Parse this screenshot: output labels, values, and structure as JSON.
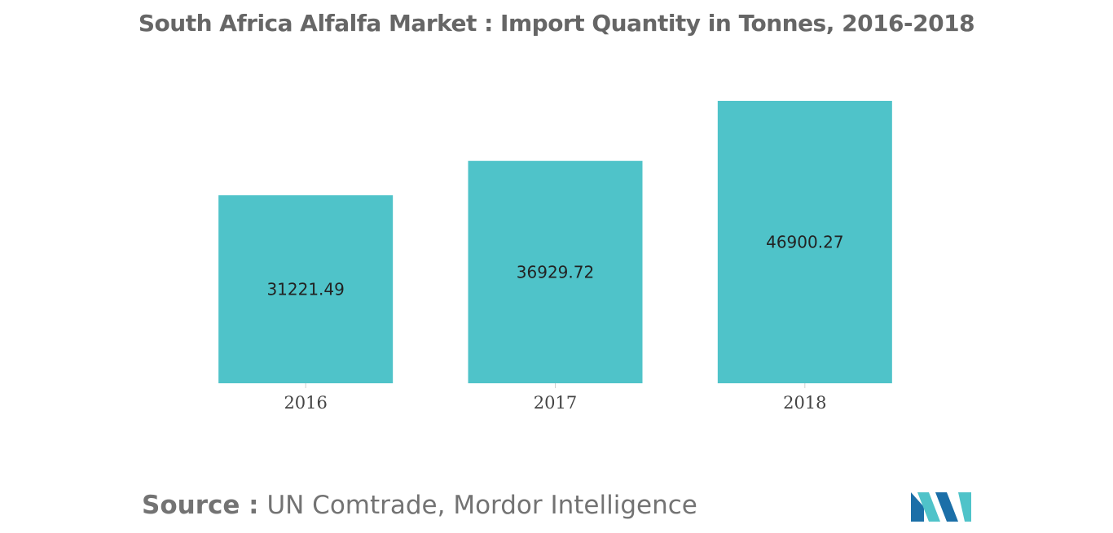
{
  "chart_data": {
    "type": "bar",
    "title": "South Africa Alfalfa Market : Import Quantity in Tonnes, 2016-2018",
    "categories": [
      "2016",
      "2017",
      "2018"
    ],
    "values": [
      31221.49,
      36929.72,
      46900.27
    ],
    "value_labels": [
      "31221.49",
      "36929.72",
      "46900.27"
    ],
    "xlabel": "",
    "ylabel": "",
    "ylim": [
      0,
      50000
    ],
    "grid": false,
    "legend": "none",
    "bar_color": "#4fc3c9"
  },
  "source": {
    "label": "Source :",
    "text": "UN Comtrade, Mordor Intelligence"
  },
  "logo": {
    "icon": "mordor-intelligence-logo-icon",
    "colors": [
      "#1b6fa8",
      "#4fc3c9"
    ]
  }
}
